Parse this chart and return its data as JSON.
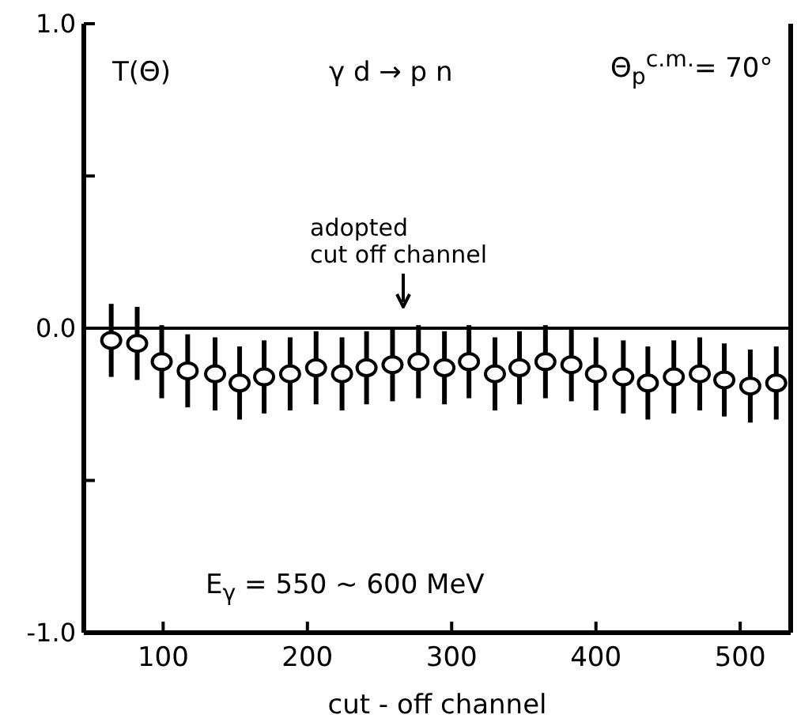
{
  "chart_data": {
    "type": "scatter",
    "xlabel": "cut - off channel",
    "annotations": [
      "T(Θ)",
      "γ d → p n",
      "Θ$_{p}$$^{c.m.}$= 70°",
      "E$_{γ}$ = 550 ~ 600 MeV",
      "adopted\ncut off channel"
    ],
    "x": [
      64,
      82,
      99,
      117,
      136,
      153,
      170,
      188,
      206,
      224,
      241,
      259,
      277,
      295,
      312,
      330,
      347,
      365,
      383,
      400,
      419,
      436,
      454,
      472,
      489,
      507,
      525
    ],
    "values": [
      -0.04,
      -0.05,
      -0.11,
      -0.14,
      -0.15,
      -0.18,
      -0.16,
      -0.15,
      -0.13,
      -0.15,
      -0.13,
      -0.12,
      -0.11,
      -0.13,
      -0.11,
      -0.15,
      -0.13,
      -0.11,
      -0.12,
      -0.15,
      -0.16,
      -0.18,
      -0.16,
      -0.15,
      -0.17,
      -0.19,
      -0.18
    ],
    "errors": [
      0.12,
      0.12,
      0.12,
      0.12,
      0.12,
      0.12,
      0.12,
      0.12,
      0.12,
      0.12,
      0.12,
      0.12,
      0.12,
      0.12,
      0.12,
      0.12,
      0.12,
      0.12,
      0.12,
      0.12,
      0.12,
      0.12,
      0.12,
      0.12,
      0.12,
      0.12,
      0.12
    ],
    "color": "#000000",
    "marker": "circle",
    "xlim": [
      45,
      535
    ],
    "xticks": [
      100,
      200,
      300,
      400,
      500
    ],
    "ylim": [
      -1,
      1
    ],
    "yticks": [
      {
        "value": -1,
        "label": "-1.0"
      },
      {
        "value": -0.5,
        "label": null
      },
      {
        "value": 0,
        "label": "0.0"
      },
      {
        "value": 0.5,
        "label": null
      },
      {
        "value": 1,
        "label": "1.0"
      }
    ],
    "ref_lines": [
      {
        "axis": "y",
        "value": 0,
        "label": null
      }
    ]
  }
}
